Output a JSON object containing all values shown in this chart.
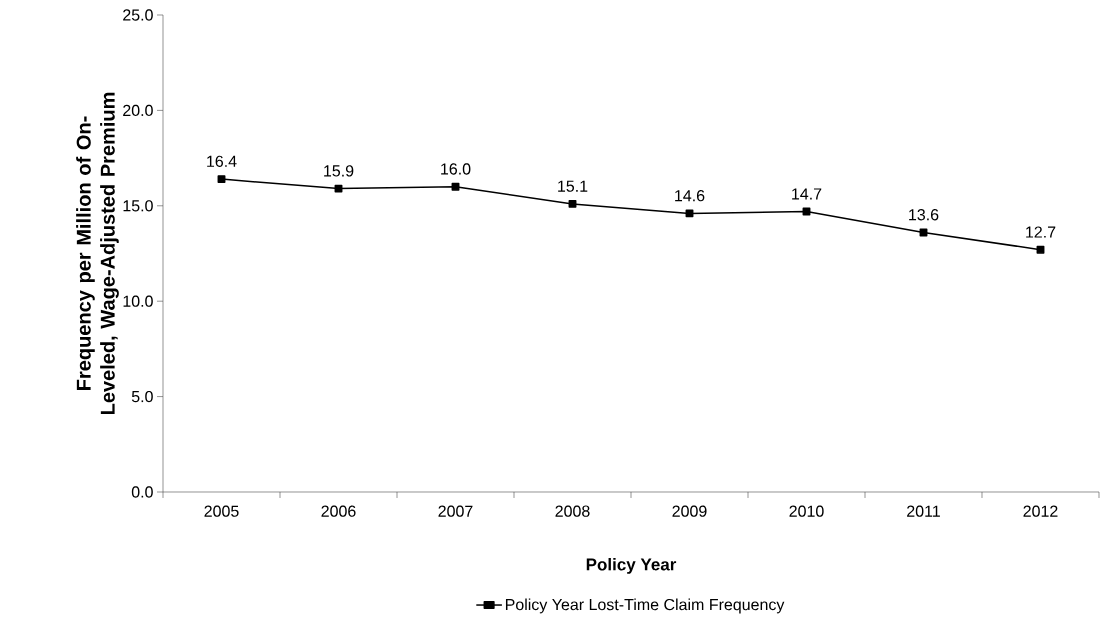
{
  "chart_data": {
    "type": "line",
    "xlabel": "Policy Year",
    "ylabel": "Frequency per Million of On-Leveled, Wage-Adjusted Premium",
    "categories": [
      "2005",
      "2006",
      "2007",
      "2008",
      "2009",
      "2010",
      "2011",
      "2012"
    ],
    "series": [
      {
        "name": "Policy Year Lost-Time Claim Frequency",
        "color": "#000000",
        "values": [
          16.4,
          15.9,
          16.0,
          15.1,
          14.6,
          14.7,
          13.6,
          12.7
        ]
      }
    ],
    "ylim": [
      0,
      25
    ],
    "yticks": [
      {
        "value": 0,
        "label": "0.0"
      },
      {
        "value": 5,
        "label": "5.0"
      },
      {
        "value": 10,
        "label": "10.0"
      },
      {
        "value": 15,
        "label": "15.0"
      },
      {
        "value": 20,
        "label": "20.0"
      },
      {
        "value": 25,
        "label": "25.0"
      }
    ],
    "value_labels": [
      "16.4",
      "15.9",
      "16.0",
      "15.1",
      "14.6",
      "14.7",
      "13.6",
      "12.7"
    ],
    "grid": false,
    "legend": "bottom",
    "marker": "square",
    "line_style": "solid"
  }
}
